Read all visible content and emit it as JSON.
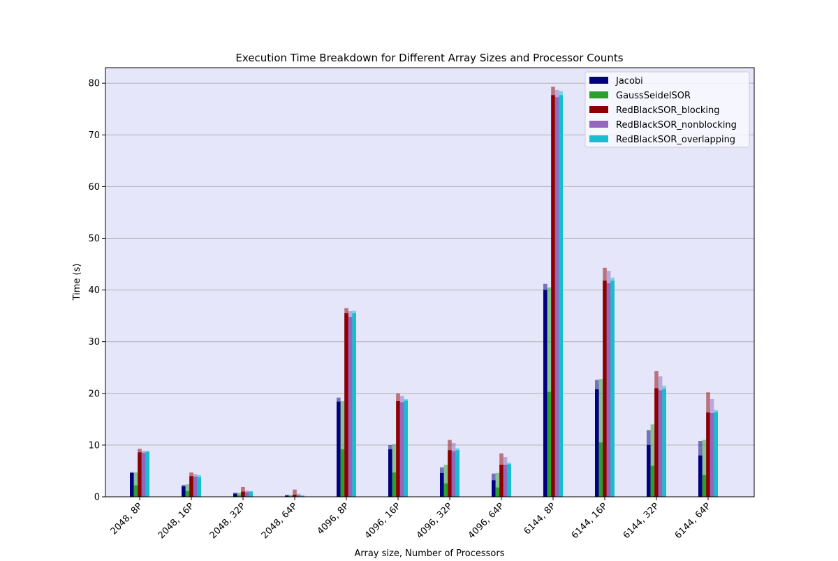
{
  "chart_data": {
    "type": "bar",
    "title": "Execution Time Breakdown for Different Array Sizes and Processor Counts",
    "xlabel": "Array size, Number of Processors",
    "ylabel": "Time (s)",
    "ylim": [
      0,
      83
    ],
    "yticks": [
      0,
      10,
      20,
      30,
      40,
      50,
      60,
      70,
      80
    ],
    "grid": "horizontal",
    "legend_position": "top-right",
    "background_color": "#e6e6fa",
    "categories": [
      "2048, 8P",
      "2048, 16P",
      "2048, 32P",
      "2048, 64P",
      "4096, 8P",
      "4096, 16P",
      "4096, 32P",
      "4096, 64P",
      "6144, 8P",
      "6144, 16P",
      "6144, 32P",
      "6144, 64P"
    ],
    "series": [
      {
        "name": "Jacobi",
        "color": "#000080",
        "values": [
          4.6,
          2.0,
          0.6,
          0.2,
          18.4,
          9.2,
          4.6,
          3.2,
          40.0,
          20.8,
          10.0,
          8.0
        ],
        "totals": [
          4.8,
          2.3,
          0.8,
          0.4,
          19.2,
          10.0,
          5.7,
          4.5,
          41.2,
          22.6,
          12.9,
          10.8
        ]
      },
      {
        "name": "GaussSeidelSOR",
        "color": "#2ca02c",
        "values": [
          2.2,
          1.1,
          0.3,
          0.1,
          9.2,
          4.7,
          2.6,
          1.8,
          20.3,
          10.5,
          6.0,
          4.2
        ],
        "totals": [
          4.7,
          2.4,
          0.8,
          0.4,
          18.5,
          10.2,
          6.2,
          4.6,
          40.5,
          22.8,
          14.0,
          11.0
        ]
      },
      {
        "name": "RedBlackSOR_blocking",
        "color": "#8b0000",
        "values": [
          8.6,
          4.0,
          1.0,
          0.4,
          35.5,
          18.5,
          9.0,
          6.2,
          77.7,
          41.8,
          21.0,
          16.3
        ],
        "totals": [
          9.3,
          4.7,
          1.9,
          1.4,
          36.5,
          20.0,
          11.0,
          8.4,
          79.3,
          44.3,
          24.3,
          20.2
        ]
      },
      {
        "name": "RedBlackSOR_nonblocking",
        "color": "#9467bd",
        "values": [
          8.5,
          3.9,
          0.9,
          0.3,
          34.8,
          18.3,
          8.8,
          6.2,
          77.3,
          41.3,
          20.6,
          16.2
        ],
        "totals": [
          8.9,
          4.4,
          1.2,
          0.6,
          35.9,
          19.5,
          10.4,
          7.7,
          78.7,
          43.7,
          23.3,
          18.9
        ]
      },
      {
        "name": "RedBlackSOR_overlapping",
        "color": "#17becf",
        "values": [
          8.7,
          3.8,
          1.0,
          0.2,
          35.5,
          18.6,
          9.0,
          6.3,
          77.7,
          41.8,
          20.9,
          16.4
        ],
        "totals": [
          8.9,
          4.2,
          1.1,
          0.3,
          36.0,
          18.9,
          9.4,
          6.6,
          78.5,
          42.4,
          21.5,
          16.8
        ]
      }
    ]
  }
}
